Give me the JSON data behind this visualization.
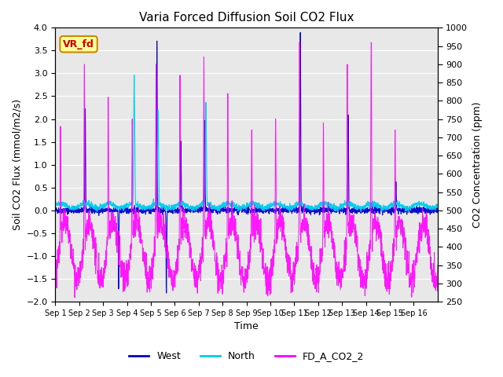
{
  "title": "Varia Forced Diffusion Soil CO2 Flux",
  "xlabel": "Time",
  "ylabel_left": "Soil CO2 Flux (mmol/m2/s)",
  "ylabel_right": "CO2 Concentration (ppm)",
  "ylim_left": [
    -2.0,
    4.0
  ],
  "ylim_right": [
    250,
    1000
  ],
  "yticks_left": [
    -2.0,
    -1.5,
    -1.0,
    -0.5,
    0.0,
    0.5,
    1.0,
    1.5,
    2.0,
    2.5,
    3.0,
    3.5,
    4.0
  ],
  "yticks_right": [
    250,
    300,
    350,
    400,
    450,
    500,
    550,
    600,
    650,
    700,
    750,
    800,
    850,
    900,
    950,
    1000
  ],
  "xtick_labels": [
    "Sep 1",
    "Sep 2",
    "Sep 3",
    "Sep 4",
    "Sep 5",
    "Sep 6",
    "Sep 7",
    "Sep 8",
    "Sep 9",
    "Sep 10",
    "Sep 11",
    "Sep 12",
    "Sep 13",
    "Sep 14",
    "Sep 15",
    "Sep 16"
  ],
  "color_west": "#0000cc",
  "color_north": "#00ccee",
  "color_co2": "#ff00ff",
  "color_bg": "#e8e8e8",
  "annotation_text": "VR_fd",
  "annotation_facecolor": "#ffff99",
  "annotation_edgecolor": "#cc8800",
  "annotation_textcolor": "#cc0000",
  "legend_labels": [
    "West",
    "North",
    "FD_A_CO2_2"
  ],
  "n_days": 16,
  "pts_per_day": 144
}
